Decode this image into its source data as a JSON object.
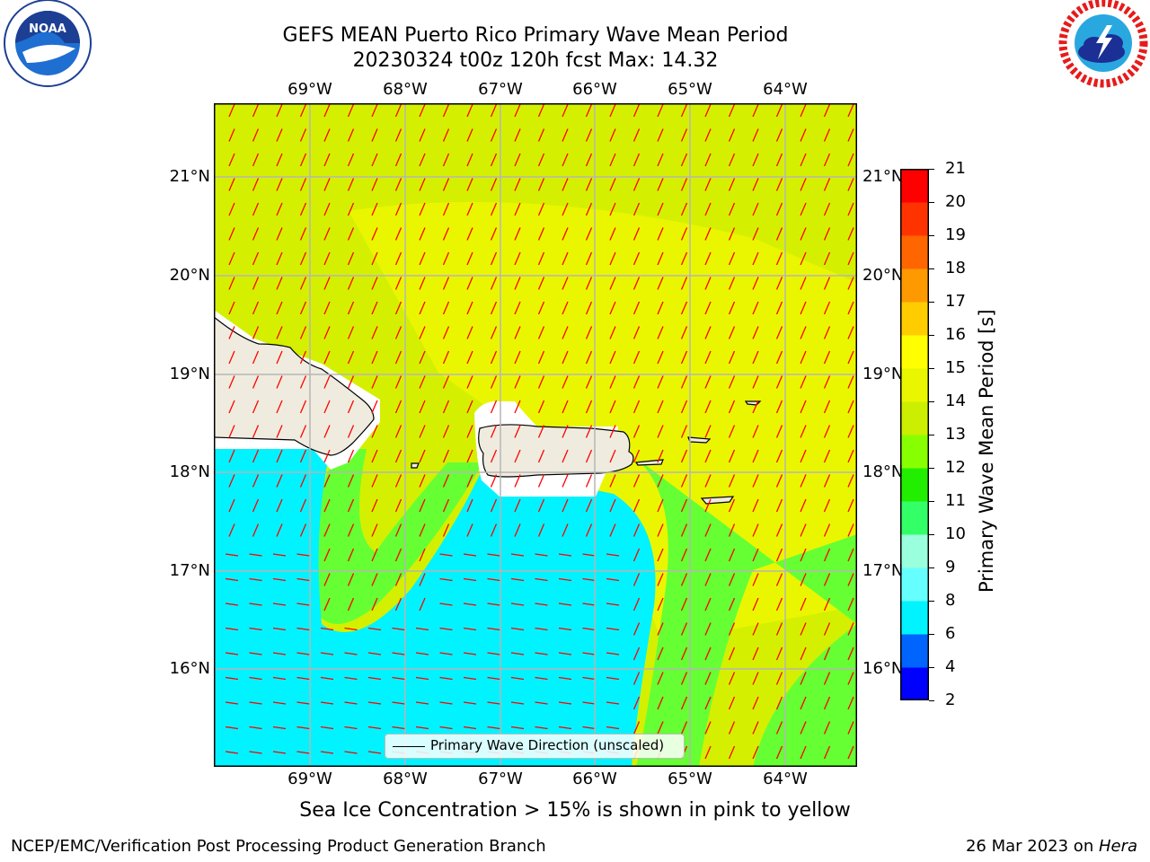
{
  "title": {
    "line1": "GEFS MEAN Puerto Rico Primary Wave Mean Period",
    "line2": "20230324 t00z 120h fcst   Max: 14.32"
  },
  "logos": {
    "left": {
      "icon": "noaa-logo",
      "text": "NOAA",
      "ring_text": "NATIONAL OCEANIC AND ATMOSPHERIC ADMINISTRATION · U.S. DEPARTMENT OF COMMERCE"
    },
    "right": {
      "icon": "nws-logo",
      "ring_text": "NATIONAL WEATHER SERVICE"
    }
  },
  "map": {
    "lon_labels": [
      "69°W",
      "68°W",
      "67°W",
      "66°W",
      "65°W",
      "64°W"
    ],
    "lat_labels": [
      "21°N",
      "20°N",
      "19°N",
      "18°N",
      "17°N",
      "16°N"
    ],
    "colors": {
      "long_period": "#d4f000",
      "mid_period": "#eaf600",
      "short_period": "#00f3ff",
      "transition": "#66ff33",
      "land": "#efecdf",
      "no_data": "#ffffff",
      "arrows": "#ff0000",
      "grid": "#b5b5b5"
    },
    "legend_label": "Primary Wave Direction (unscaled)"
  },
  "colorbar": {
    "title": "Primary Wave Mean Period [s]",
    "ticks": [
      "21",
      "20",
      "19",
      "18",
      "17",
      "16",
      "15",
      "14",
      "13",
      "12",
      "11",
      "10",
      "9",
      "8",
      "6",
      "4",
      "2"
    ],
    "colors": [
      "#0000ff",
      "#0064ff",
      "#00f3ff",
      "#66ffff",
      "#99ffdd",
      "#33ff66",
      "#22ee00",
      "#88ff00",
      "#ccee00",
      "#eaf600",
      "#ffff00",
      "#ffcc00",
      "#ff9900",
      "#ff6600",
      "#ff3300",
      "#ff0000"
    ]
  },
  "note": "Sea Ice Concentration > 15% is shown in pink to yellow",
  "footer": {
    "left": "NCEP/EMC/Verification Post Processing Product Generation Branch",
    "date": "26 Mar 2023 on ",
    "machine": "Hera"
  }
}
